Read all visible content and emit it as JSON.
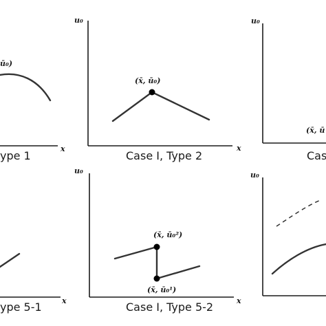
{
  "panels": [
    {
      "caption": "ype 1",
      "point_label": "ū₀)",
      "xaxis": "x"
    },
    {
      "caption": "Case I, Type 2",
      "point_label": "(x̄, ū₀)",
      "xaxis": "x",
      "yaxis": "u₀"
    },
    {
      "caption": "Cas",
      "point_label": "(x̄, ū",
      "xaxis": "x",
      "yaxis": "u₀"
    },
    {
      "caption": "ype 5-1",
      "xaxis": "x"
    },
    {
      "caption": "Case I, Type 5-2",
      "point_label_top": "(x̄, ū₀²)",
      "point_label_bottom": "(x̄, ū₀¹)",
      "xaxis": "x",
      "yaxis": "u₀"
    },
    {
      "caption": "",
      "yaxis": "u₀"
    }
  ]
}
